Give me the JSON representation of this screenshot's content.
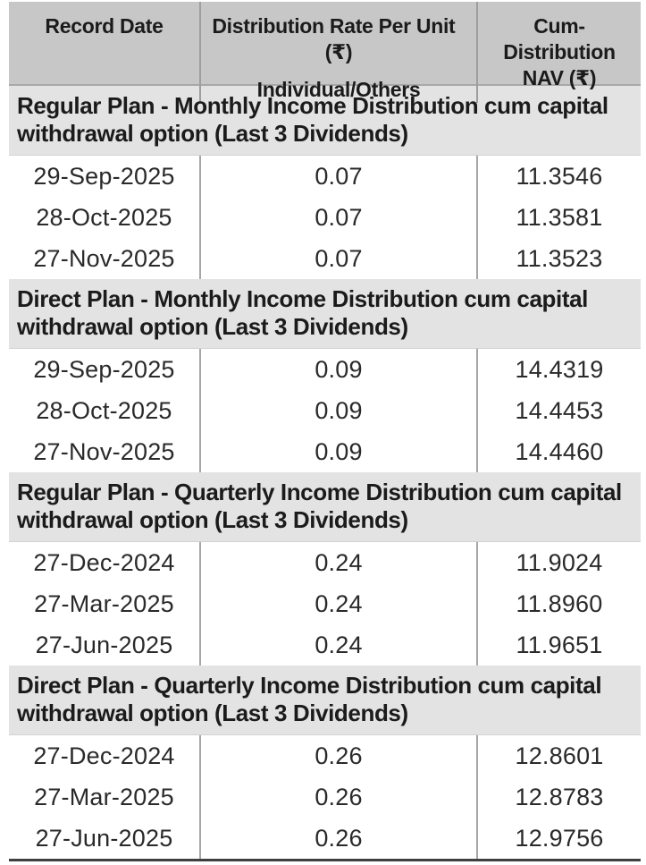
{
  "colors": {
    "header_bg": "#c7c7c7",
    "section_bg": "#e3e3e3",
    "row_bg": "#ffffff",
    "column_separator": "#a6a6a6",
    "bottom_border": "#3f3f3f",
    "text": "#1b1b1b"
  },
  "header": {
    "record_date": "Record Date",
    "rate_line1": "Distribution Rate Per Unit (₹)",
    "rate_line2": "Individual/Others",
    "nav": "Cum-Distribution\nNAV (₹)"
  },
  "sections": [
    {
      "title": "Regular Plan - Monthly Income Distribution cum capital\nwithdrawal option (Last 3 Dividends)",
      "rows": [
        {
          "record_date": "29-Sep-2025",
          "rate": "0.07",
          "nav": "11.3546"
        },
        {
          "record_date": "28-Oct-2025",
          "rate": "0.07",
          "nav": "11.3581"
        },
        {
          "record_date": "27-Nov-2025",
          "rate": "0.07",
          "nav": "11.3523"
        }
      ]
    },
    {
      "title": "Direct Plan - Monthly Income Distribution cum capital\nwithdrawal option (Last 3 Dividends)",
      "rows": [
        {
          "record_date": "29-Sep-2025",
          "rate": "0.09",
          "nav": "14.4319"
        },
        {
          "record_date": "28-Oct-2025",
          "rate": "0.09",
          "nav": "14.4453"
        },
        {
          "record_date": "27-Nov-2025",
          "rate": "0.09",
          "nav": "14.4460"
        }
      ]
    },
    {
      "title": "Regular Plan - Quarterly Income Distribution cum capital\nwithdrawal option (Last 3 Dividends)",
      "rows": [
        {
          "record_date": "27-Dec-2024",
          "rate": "0.24",
          "nav": "11.9024"
        },
        {
          "record_date": "27-Mar-2025",
          "rate": "0.24",
          "nav": "11.8960"
        },
        {
          "record_date": "27-Jun-2025",
          "rate": "0.24",
          "nav": "11.9651"
        }
      ]
    },
    {
      "title": "Direct Plan - Quarterly Income Distribution cum capital\nwithdrawal option (Last 3 Dividends)",
      "rows": [
        {
          "record_date": "27-Dec-2024",
          "rate": "0.26",
          "nav": "12.8601"
        },
        {
          "record_date": "27-Mar-2025",
          "rate": "0.26",
          "nav": "12.8783"
        },
        {
          "record_date": "27-Jun-2025",
          "rate": "0.26",
          "nav": "12.9756"
        }
      ]
    }
  ]
}
